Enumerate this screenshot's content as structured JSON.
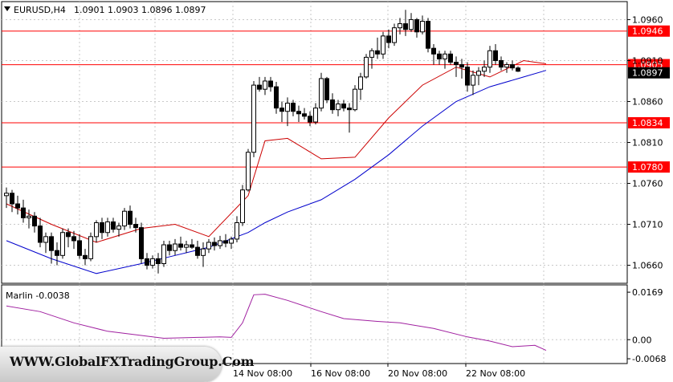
{
  "header": {
    "symbol_timeframe": "EURUSD,H4",
    "ohlc": "1.0901 1.0903 1.0896 1.0897",
    "menu_arrow_icon": "triangle-down-icon"
  },
  "price_axis": {
    "ticks": [
      "1.0960",
      "1.0910",
      "1.0860",
      "1.0810",
      "1.0760",
      "1.0710",
      "1.0660"
    ],
    "current_price_label": "1.0897"
  },
  "levels": [
    {
      "label": "1.0946",
      "value": 1.0946
    },
    {
      "label": "1.0905",
      "value": 1.0905
    },
    {
      "label": "1.0834",
      "value": 1.0834
    },
    {
      "label": "1.0780",
      "value": 1.078
    }
  ],
  "indicator": {
    "label": "Marlin -0.0038",
    "ticks": [
      "0.0169",
      "0.00",
      "-0.0068"
    ]
  },
  "time_axis": [
    "14 Nov 08:00",
    "16 Nov 08:00",
    "20 Nov 08:00",
    "22 Nov 08:00"
  ],
  "watermark": "WWW.GlobalFXTradingGroup.Com",
  "colors": {
    "background": "#ffffff",
    "bull_candle": "#ffffff",
    "bear_candle": "#000000",
    "level_line": "#ff0000",
    "fast_ma": "#cc0000",
    "slow_ma": "#0000cc",
    "oscillator": "#a020a0"
  },
  "chart_data": {
    "type": "candlestick",
    "y_range": [
      1.0638,
      1.0982
    ],
    "indicator_range": [
      -0.0085,
      0.0195
    ],
    "candles": [
      [
        1.0745,
        1.0755,
        1.073,
        1.0748
      ],
      [
        1.0748,
        1.0752,
        1.0725,
        1.0735
      ],
      [
        1.0735,
        1.0745,
        1.0722,
        1.073
      ],
      [
        1.073,
        1.074,
        1.0712,
        1.0718
      ],
      [
        1.0718,
        1.0728,
        1.0705,
        1.072
      ],
      [
        1.072,
        1.0725,
        1.07,
        1.0708
      ],
      [
        1.0708,
        1.0718,
        1.0682,
        1.0688
      ],
      [
        1.0688,
        1.07,
        1.0675,
        1.0695
      ],
      [
        1.0695,
        1.07,
        1.0662,
        1.0678
      ],
      [
        1.0678,
        1.0688,
        1.066,
        1.0672
      ],
      [
        1.0672,
        1.0705,
        1.0668,
        1.07
      ],
      [
        1.07,
        1.0705,
        1.0682,
        1.0695
      ],
      [
        1.0695,
        1.0702,
        1.068,
        1.069
      ],
      [
        1.069,
        1.0698,
        1.0668,
        1.0672
      ],
      [
        1.0672,
        1.068,
        1.066,
        1.0668
      ],
      [
        1.0668,
        1.07,
        1.0665,
        1.0695
      ],
      [
        1.0695,
        1.0715,
        1.0688,
        1.0712
      ],
      [
        1.0712,
        1.0718,
        1.0692,
        1.07
      ],
      [
        1.07,
        1.0718,
        1.0695,
        1.0713
      ],
      [
        1.0713,
        1.0718,
        1.07,
        1.0704
      ],
      [
        1.0704,
        1.0712,
        1.0695,
        1.0708
      ],
      [
        1.0708,
        1.073,
        1.0703,
        1.0726
      ],
      [
        1.0726,
        1.0733,
        1.0705,
        1.071
      ],
      [
        1.071,
        1.0718,
        1.07,
        1.0706
      ],
      [
        1.0706,
        1.0712,
        1.0662,
        1.0668
      ],
      [
        1.0668,
        1.0675,
        1.0655,
        1.066
      ],
      [
        1.066,
        1.0672,
        1.0656,
        1.0668
      ],
      [
        1.0668,
        1.0675,
        1.065,
        1.0662
      ],
      [
        1.0662,
        1.069,
        1.0658,
        1.0685
      ],
      [
        1.0685,
        1.069,
        1.0672,
        1.0678
      ],
      [
        1.0678,
        1.0692,
        1.0672,
        1.0686
      ],
      [
        1.0686,
        1.0695,
        1.0678,
        1.0682
      ],
      [
        1.0682,
        1.069,
        1.0675,
        1.0685
      ],
      [
        1.0685,
        1.0692,
        1.068,
        1.0682
      ],
      [
        1.0682,
        1.069,
        1.0668,
        1.0672
      ],
      [
        1.0672,
        1.0688,
        1.0658,
        1.068
      ],
      [
        1.068,
        1.0692,
        1.0675,
        1.0688
      ],
      [
        1.0688,
        1.0694,
        1.0678,
        1.0684
      ],
      [
        1.0684,
        1.0696,
        1.068,
        1.069
      ],
      [
        1.069,
        1.0698,
        1.0682,
        1.0687
      ],
      [
        1.0687,
        1.0695,
        1.068,
        1.0692
      ],
      [
        1.0692,
        1.072,
        1.0688,
        1.0712
      ],
      [
        1.0712,
        1.0758,
        1.0708,
        1.0752
      ],
      [
        1.0752,
        1.0802,
        1.075,
        1.0798
      ],
      [
        1.0798,
        1.0885,
        1.0792,
        1.088
      ],
      [
        1.088,
        1.089,
        1.0872,
        1.0875
      ],
      [
        1.0875,
        1.089,
        1.0868,
        1.0885
      ],
      [
        1.0885,
        1.089,
        1.0872,
        1.0878
      ],
      [
        1.0878,
        1.0884,
        1.0845,
        1.0852
      ],
      [
        1.0852,
        1.086,
        1.0835,
        1.0848
      ],
      [
        1.0848,
        1.0865,
        1.083,
        1.0858
      ],
      [
        1.0858,
        1.0862,
        1.0842,
        1.0848
      ],
      [
        1.0848,
        1.0855,
        1.0835,
        1.0845
      ],
      [
        1.0845,
        1.0852,
        1.0838,
        1.0842
      ],
      [
        1.0842,
        1.0848,
        1.083,
        1.0835
      ],
      [
        1.0835,
        1.0858,
        1.0832,
        1.0852
      ],
      [
        1.0852,
        1.0895,
        1.0848,
        1.0888
      ],
      [
        1.0888,
        1.089,
        1.0858,
        1.0862
      ],
      [
        1.0862,
        1.087,
        1.0845,
        1.085
      ],
      [
        1.085,
        1.0862,
        1.0842,
        1.0857
      ],
      [
        1.0857,
        1.0862,
        1.0848,
        1.0852
      ],
      [
        1.0852,
        1.0858,
        1.0822,
        1.085
      ],
      [
        1.085,
        1.088,
        1.0848,
        1.0875
      ],
      [
        1.0875,
        1.0895,
        1.0862,
        1.089
      ],
      [
        1.089,
        1.0918,
        1.0888,
        1.0914
      ],
      [
        1.0914,
        1.0925,
        1.09,
        1.0922
      ],
      [
        1.0922,
        1.0938,
        1.0912,
        1.0918
      ],
      [
        1.0918,
        1.0945,
        1.0912,
        1.094
      ],
      [
        1.094,
        1.0948,
        1.0925,
        1.0932
      ],
      [
        1.0932,
        1.0955,
        1.0928,
        1.095
      ],
      [
        1.095,
        1.0962,
        1.0942,
        1.0955
      ],
      [
        1.0955,
        1.0972,
        1.094,
        1.0948
      ],
      [
        1.0948,
        1.0968,
        1.0945,
        1.096
      ],
      [
        1.096,
        1.0962,
        1.0938,
        1.0945
      ],
      [
        1.0945,
        1.0965,
        1.0942,
        1.0958
      ],
      [
        1.0958,
        1.0962,
        1.092,
        1.0925
      ],
      [
        1.0925,
        1.093,
        1.0905,
        1.0918
      ],
      [
        1.0918,
        1.0922,
        1.0905,
        1.0912
      ],
      [
        1.0912,
        1.0922,
        1.09,
        1.0918
      ],
      [
        1.0918,
        1.0922,
        1.0905,
        1.0908
      ],
      [
        1.0908,
        1.0915,
        1.089,
        1.0905
      ],
      [
        1.0905,
        1.0912,
        1.0888,
        1.0902
      ],
      [
        1.0902,
        1.0908,
        1.0872,
        1.088
      ],
      [
        1.088,
        1.0898,
        1.0868,
        1.0892
      ],
      [
        1.0892,
        1.0902,
        1.088,
        1.0897
      ],
      [
        1.0897,
        1.091,
        1.089,
        1.0902
      ],
      [
        1.0902,
        1.0928,
        1.0895,
        1.0922
      ],
      [
        1.0922,
        1.093,
        1.0905,
        1.091
      ],
      [
        1.091,
        1.0915,
        1.0898,
        1.0902
      ],
      [
        1.0902,
        1.0908,
        1.0895,
        1.0905
      ],
      [
        1.0905,
        1.091,
        1.0898,
        1.0901
      ],
      [
        1.0901,
        1.0903,
        1.0896,
        1.0897
      ]
    ],
    "fast_ma": [
      [
        0,
        1.0735
      ],
      [
        8,
        1.071
      ],
      [
        16,
        1.0688
      ],
      [
        24,
        1.0705
      ],
      [
        30,
        1.071
      ],
      [
        36,
        1.0695
      ],
      [
        43,
        1.0745
      ],
      [
        46,
        1.0812
      ],
      [
        50,
        1.0815
      ],
      [
        56,
        1.079
      ],
      [
        62,
        1.0792
      ],
      [
        68,
        1.084
      ],
      [
        74,
        1.088
      ],
      [
        80,
        1.0902
      ],
      [
        86,
        1.089
      ],
      [
        92,
        1.091
      ],
      [
        96,
        1.0906
      ]
    ],
    "slow_ma": [
      [
        0,
        1.069
      ],
      [
        8,
        1.0668
      ],
      [
        16,
        1.065
      ],
      [
        24,
        1.0662
      ],
      [
        30,
        1.0672
      ],
      [
        36,
        1.0682
      ],
      [
        43,
        1.07
      ],
      [
        46,
        1.0712
      ],
      [
        50,
        1.0725
      ],
      [
        56,
        1.074
      ],
      [
        62,
        1.0765
      ],
      [
        68,
        1.0795
      ],
      [
        74,
        1.083
      ],
      [
        80,
        1.086
      ],
      [
        86,
        1.0878
      ],
      [
        92,
        1.089
      ],
      [
        96,
        1.0898
      ]
    ],
    "marlin": [
      [
        0,
        0.012
      ],
      [
        6,
        0.01
      ],
      [
        12,
        0.006
      ],
      [
        18,
        0.003
      ],
      [
        24,
        0.0015
      ],
      [
        28,
        0.0005
      ],
      [
        34,
        0.0008
      ],
      [
        38,
        0.001
      ],
      [
        40,
        0.0008
      ],
      [
        42,
        0.006
      ],
      [
        43,
        0.011
      ],
      [
        44,
        0.016
      ],
      [
        46,
        0.0162
      ],
      [
        50,
        0.014
      ],
      [
        56,
        0.01
      ],
      [
        60,
        0.0075
      ],
      [
        66,
        0.0065
      ],
      [
        70,
        0.006
      ],
      [
        76,
        0.004
      ],
      [
        82,
        0.001
      ],
      [
        86,
        -0.0005
      ],
      [
        90,
        -0.0025
      ],
      [
        94,
        -0.002
      ],
      [
        96,
        -0.0038
      ]
    ]
  }
}
